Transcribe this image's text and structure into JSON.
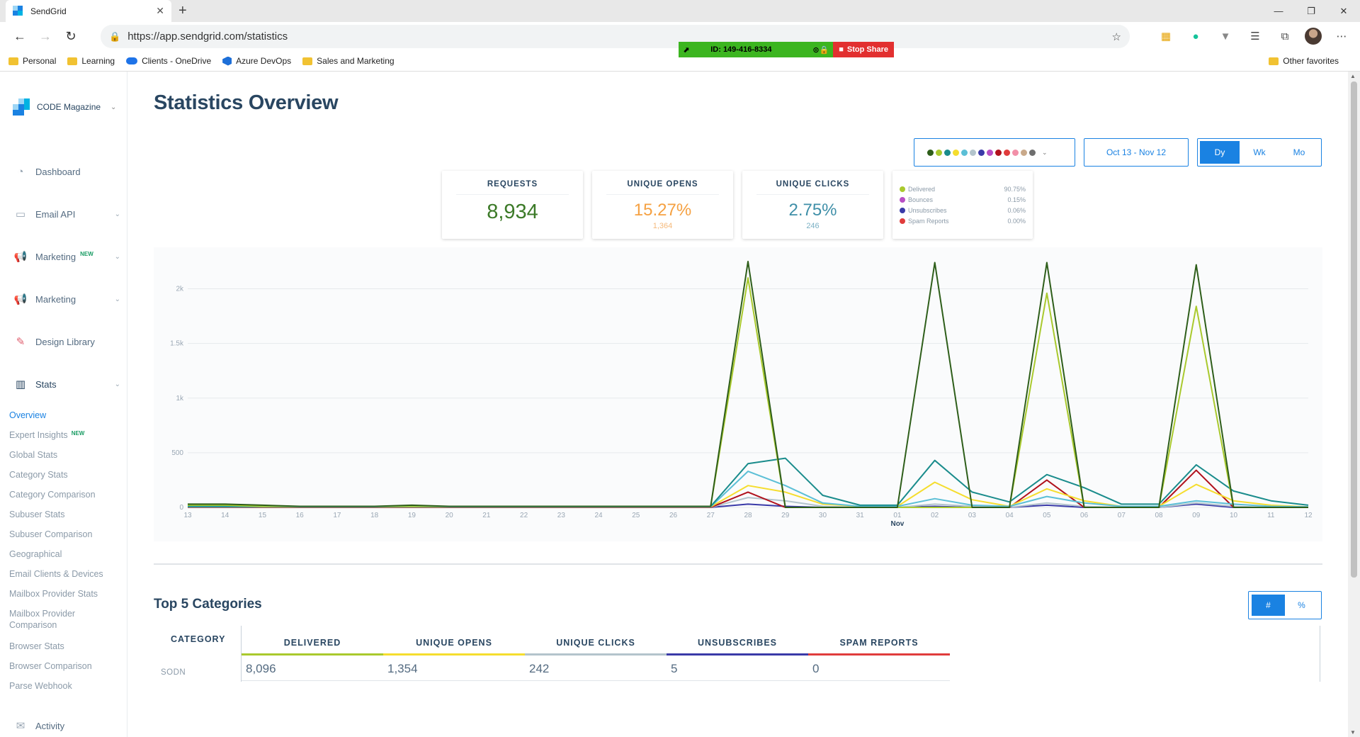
{
  "browser": {
    "tab_title": "SendGrid",
    "url": "https://app.sendgrid.com/statistics",
    "share_id": "ID: 149-416-8334",
    "share_stop": "Stop Share",
    "bookmarks": [
      "Personal",
      "Learning",
      "Clients - OneDrive",
      "Azure DevOps",
      "Sales and Marketing"
    ],
    "other_favorites": "Other favorites"
  },
  "sidebar": {
    "account": "CODE Magazine",
    "nav": [
      {
        "label": "Dashboard",
        "icon": "gauge-icon"
      },
      {
        "label": "Email API",
        "icon": "email-api-icon"
      },
      {
        "label": "Marketing",
        "icon": "megaphone-icon",
        "badge": "NEW"
      },
      {
        "label": "Marketing",
        "icon": "megaphone-icon"
      },
      {
        "label": "Design Library",
        "icon": "design-tools-icon"
      },
      {
        "label": "Stats",
        "icon": "bar-chart-icon"
      }
    ],
    "stats_sub": [
      "Overview",
      "Expert Insights",
      "Global Stats",
      "Category Stats",
      "Category Comparison",
      "Subuser Stats",
      "Subuser Comparison",
      "Geographical",
      "Email Clients & Devices",
      "Mailbox Provider Stats",
      "Mailbox Provider Comparison",
      "Browser Stats",
      "Browser Comparison",
      "Parse Webhook"
    ],
    "new_badge": "NEW",
    "activity": "Activity"
  },
  "page": {
    "title": "Statistics Overview",
    "date_range": "Oct 13 - Nov 12",
    "granularity": [
      "Dy",
      "Wk",
      "Mo"
    ],
    "selected_granularity": "Dy",
    "metric_colors": [
      "#2e5e1a",
      "#a9c92d",
      "#1a8c8c",
      "#f5dd2e",
      "#5bbfd6",
      "#b3c4cc",
      "#3a3aa8",
      "#b84fc4",
      "#b0111c",
      "#e03c3c",
      "#f28fa8",
      "#c9a98a",
      "#6e6e6e"
    ]
  },
  "cards": {
    "requests": {
      "label": "REQUESTS",
      "value": "8,934"
    },
    "unique_opens": {
      "label": "UNIQUE OPENS",
      "value": "15.27%",
      "count": "1,364"
    },
    "unique_clicks": {
      "label": "UNIQUE CLICKS",
      "value": "2.75%",
      "count": "246"
    },
    "legend": [
      {
        "label": "Delivered",
        "value": "90.75%",
        "color": "#a9c92d"
      },
      {
        "label": "Bounces",
        "value": "0.15%",
        "color": "#b84fc4"
      },
      {
        "label": "Unsubscribes",
        "value": "0.06%",
        "color": "#3a3aa8"
      },
      {
        "label": "Spam Reports",
        "value": "0.00%",
        "color": "#e03c3c"
      }
    ]
  },
  "chart_data": {
    "type": "line",
    "x": [
      "13",
      "14",
      "15",
      "16",
      "17",
      "18",
      "19",
      "20",
      "21",
      "22",
      "23",
      "24",
      "25",
      "26",
      "27",
      "28",
      "29",
      "30",
      "31",
      "01",
      "02",
      "03",
      "04",
      "05",
      "06",
      "07",
      "08",
      "09",
      "10",
      "11",
      "12"
    ],
    "x_month_label": "Nov",
    "ylim": [
      0,
      2250
    ],
    "yticks": [
      "0",
      "500",
      "1k",
      "1.5k",
      "2k"
    ],
    "series": [
      {
        "color": "#2e5e1a",
        "values": [
          30,
          30,
          20,
          10,
          10,
          10,
          20,
          10,
          10,
          10,
          10,
          10,
          10,
          10,
          10,
          2250,
          0,
          0,
          0,
          0,
          2240,
          0,
          0,
          2240,
          0,
          0,
          0,
          2220,
          0,
          0,
          0
        ]
      },
      {
        "color": "#a9c92d",
        "values": [
          20,
          20,
          10,
          10,
          10,
          10,
          10,
          10,
          10,
          10,
          10,
          10,
          10,
          10,
          10,
          2100,
          0,
          0,
          0,
          0,
          0,
          0,
          0,
          1960,
          0,
          0,
          0,
          1840,
          0,
          0,
          0
        ]
      },
      {
        "color": "#1a8c8c",
        "values": [
          10,
          10,
          10,
          10,
          10,
          10,
          10,
          10,
          10,
          10,
          10,
          10,
          10,
          10,
          10,
          400,
          450,
          110,
          20,
          20,
          430,
          140,
          50,
          300,
          180,
          30,
          30,
          390,
          150,
          60,
          20
        ]
      },
      {
        "color": "#5bbfd6",
        "values": [
          5,
          5,
          5,
          5,
          5,
          5,
          5,
          5,
          5,
          5,
          5,
          5,
          5,
          5,
          5,
          330,
          200,
          40,
          10,
          10,
          80,
          20,
          10,
          100,
          40,
          10,
          10,
          60,
          30,
          10,
          5
        ]
      },
      {
        "color": "#f5dd2e",
        "values": [
          5,
          5,
          5,
          5,
          5,
          5,
          5,
          5,
          5,
          5,
          5,
          5,
          5,
          5,
          5,
          200,
          140,
          30,
          10,
          10,
          230,
          70,
          10,
          170,
          60,
          10,
          10,
          210,
          60,
          20,
          5
        ]
      },
      {
        "color": "#b0111c",
        "values": [
          0,
          0,
          0,
          0,
          0,
          0,
          0,
          0,
          0,
          0,
          0,
          0,
          0,
          0,
          0,
          140,
          0,
          0,
          0,
          0,
          0,
          0,
          0,
          250,
          0,
          0,
          0,
          340,
          0,
          0,
          0
        ]
      },
      {
        "color": "#b3c4cc",
        "values": [
          0,
          0,
          0,
          0,
          0,
          0,
          0,
          0,
          0,
          0,
          0,
          0,
          0,
          0,
          0,
          90,
          60,
          10,
          0,
          0,
          30,
          10,
          0,
          40,
          10,
          0,
          0,
          40,
          10,
          0,
          0
        ]
      },
      {
        "color": "#3a3aa8",
        "values": [
          0,
          0,
          0,
          0,
          0,
          0,
          0,
          0,
          0,
          0,
          0,
          0,
          0,
          0,
          0,
          30,
          10,
          0,
          0,
          0,
          10,
          0,
          0,
          20,
          0,
          0,
          0,
          30,
          0,
          0,
          0
        ]
      }
    ]
  },
  "categories": {
    "title": "Top 5 Categories",
    "toggle": [
      "#",
      "%"
    ],
    "header": "CATEGORY",
    "columns": [
      {
        "label": "DELIVERED",
        "color": "#a9c92d"
      },
      {
        "label": "UNIQUE OPENS",
        "color": "#f5dd2e"
      },
      {
        "label": "UNIQUE CLICKS",
        "color": "#b3c4cc"
      },
      {
        "label": "UNSUBSCRIBES",
        "color": "#3a3aa8"
      },
      {
        "label": "SPAM REPORTS",
        "color": "#e03c3c"
      }
    ],
    "rows": [
      {
        "name": "SODN",
        "values": [
          "8,096",
          "1,354",
          "242",
          "5",
          "0"
        ]
      }
    ]
  }
}
